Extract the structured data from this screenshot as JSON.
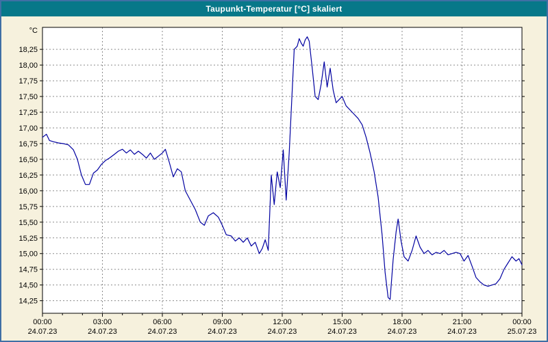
{
  "window": {
    "title": "Taupunkt-Temperatur [°C] skaliert",
    "title_bar_color": "#077889",
    "background_color": "#f6f1dd",
    "border_color": "#3f6fa5"
  },
  "chart_data": {
    "type": "line",
    "title": "Taupunkt-Temperatur [°C] skaliert",
    "xlabel": "",
    "ylabel": "°C",
    "grid": true,
    "legend": "none",
    "xlim": [
      0,
      24
    ],
    "ylim": [
      14.05,
      18.6
    ],
    "line_color": "#0000a0",
    "y_ticks": [
      {
        "value": 18.25,
        "label": "18,25"
      },
      {
        "value": 18.0,
        "label": "18,00"
      },
      {
        "value": 17.75,
        "label": "17,75"
      },
      {
        "value": 17.5,
        "label": "17,50"
      },
      {
        "value": 17.25,
        "label": "17,25"
      },
      {
        "value": 17.0,
        "label": "17,00"
      },
      {
        "value": 16.75,
        "label": "16,75"
      },
      {
        "value": 16.5,
        "label": "16,50"
      },
      {
        "value": 16.25,
        "label": "16,25"
      },
      {
        "value": 16.0,
        "label": "16,00"
      },
      {
        "value": 15.75,
        "label": "15,75"
      },
      {
        "value": 15.5,
        "label": "15,50"
      },
      {
        "value": 15.25,
        "label": "15,25"
      },
      {
        "value": 15.0,
        "label": "15,00"
      },
      {
        "value": 14.75,
        "label": "14,75"
      },
      {
        "value": 14.5,
        "label": "14,50"
      },
      {
        "value": 14.25,
        "label": "14,25"
      }
    ],
    "x_ticks": [
      {
        "hour": 0,
        "time": "00:00",
        "date": "24.07.23"
      },
      {
        "hour": 3,
        "time": "03:00",
        "date": "24.07.23"
      },
      {
        "hour": 6,
        "time": "06:00",
        "date": "24.07.23"
      },
      {
        "hour": 9,
        "time": "09:00",
        "date": "24.07.23"
      },
      {
        "hour": 12,
        "time": "12:00",
        "date": "24.07.23"
      },
      {
        "hour": 15,
        "time": "15:00",
        "date": "24.07.23"
      },
      {
        "hour": 18,
        "time": "18:00",
        "date": "24.07.23"
      },
      {
        "hour": 21,
        "time": "21:00",
        "date": "24.07.23"
      },
      {
        "hour": 24,
        "time": "00:00",
        "date": "25.07.23"
      }
    ],
    "series": [
      {
        "name": "Taupunkt-Temperatur",
        "color": "#0000a0",
        "points": [
          [
            0.0,
            16.85
          ],
          [
            0.2,
            16.9
          ],
          [
            0.35,
            16.8
          ],
          [
            0.55,
            16.78
          ],
          [
            0.8,
            16.76
          ],
          [
            1.05,
            16.75
          ],
          [
            1.3,
            16.73
          ],
          [
            1.55,
            16.65
          ],
          [
            1.75,
            16.5
          ],
          [
            1.95,
            16.25
          ],
          [
            2.15,
            16.1
          ],
          [
            2.35,
            16.1
          ],
          [
            2.55,
            16.28
          ],
          [
            2.75,
            16.33
          ],
          [
            2.95,
            16.42
          ],
          [
            3.15,
            16.48
          ],
          [
            3.35,
            16.52
          ],
          [
            3.6,
            16.58
          ],
          [
            3.8,
            16.63
          ],
          [
            4.0,
            16.66
          ],
          [
            4.2,
            16.6
          ],
          [
            4.4,
            16.65
          ],
          [
            4.6,
            16.58
          ],
          [
            4.8,
            16.63
          ],
          [
            5.0,
            16.58
          ],
          [
            5.2,
            16.52
          ],
          [
            5.4,
            16.6
          ],
          [
            5.6,
            16.5
          ],
          [
            5.8,
            16.55
          ],
          [
            6.0,
            16.6
          ],
          [
            6.15,
            16.66
          ],
          [
            6.35,
            16.45
          ],
          [
            6.55,
            16.22
          ],
          [
            6.75,
            16.35
          ],
          [
            6.95,
            16.3
          ],
          [
            7.15,
            16.0
          ],
          [
            7.4,
            15.85
          ],
          [
            7.65,
            15.7
          ],
          [
            7.9,
            15.5
          ],
          [
            8.1,
            15.45
          ],
          [
            8.3,
            15.6
          ],
          [
            8.55,
            15.65
          ],
          [
            8.8,
            15.58
          ],
          [
            9.0,
            15.45
          ],
          [
            9.2,
            15.3
          ],
          [
            9.45,
            15.28
          ],
          [
            9.65,
            15.2
          ],
          [
            9.85,
            15.25
          ],
          [
            10.05,
            15.18
          ],
          [
            10.25,
            15.25
          ],
          [
            10.45,
            15.12
          ],
          [
            10.65,
            15.18
          ],
          [
            10.85,
            15.0
          ],
          [
            11.0,
            15.08
          ],
          [
            11.15,
            15.22
          ],
          [
            11.3,
            15.05
          ],
          [
            11.45,
            16.25
          ],
          [
            11.6,
            15.78
          ],
          [
            11.75,
            16.3
          ],
          [
            11.9,
            16.05
          ],
          [
            12.05,
            16.65
          ],
          [
            12.2,
            15.85
          ],
          [
            12.35,
            16.6
          ],
          [
            12.5,
            17.6
          ],
          [
            12.6,
            18.25
          ],
          [
            12.75,
            18.3
          ],
          [
            12.85,
            18.42
          ],
          [
            12.95,
            18.35
          ],
          [
            13.05,
            18.3
          ],
          [
            13.15,
            18.4
          ],
          [
            13.25,
            18.45
          ],
          [
            13.35,
            18.38
          ],
          [
            13.5,
            17.95
          ],
          [
            13.65,
            17.5
          ],
          [
            13.8,
            17.45
          ],
          [
            13.95,
            17.7
          ],
          [
            14.1,
            18.05
          ],
          [
            14.25,
            17.65
          ],
          [
            14.4,
            17.95
          ],
          [
            14.55,
            17.6
          ],
          [
            14.7,
            17.4
          ],
          [
            14.85,
            17.45
          ],
          [
            15.0,
            17.5
          ],
          [
            15.2,
            17.35
          ],
          [
            15.5,
            17.25
          ],
          [
            15.8,
            17.15
          ],
          [
            16.0,
            17.05
          ],
          [
            16.2,
            16.85
          ],
          [
            16.4,
            16.6
          ],
          [
            16.6,
            16.3
          ],
          [
            16.8,
            15.9
          ],
          [
            17.0,
            15.3
          ],
          [
            17.15,
            14.7
          ],
          [
            17.3,
            14.3
          ],
          [
            17.4,
            14.27
          ],
          [
            17.55,
            14.9
          ],
          [
            17.7,
            15.35
          ],
          [
            17.8,
            15.55
          ],
          [
            17.95,
            15.2
          ],
          [
            18.1,
            14.95
          ],
          [
            18.3,
            14.88
          ],
          [
            18.5,
            15.05
          ],
          [
            18.7,
            15.28
          ],
          [
            18.9,
            15.1
          ],
          [
            19.1,
            15.0
          ],
          [
            19.3,
            15.05
          ],
          [
            19.5,
            14.98
          ],
          [
            19.7,
            15.02
          ],
          [
            19.9,
            15.0
          ],
          [
            20.1,
            15.05
          ],
          [
            20.3,
            14.98
          ],
          [
            20.5,
            15.0
          ],
          [
            20.7,
            15.02
          ],
          [
            20.9,
            15.0
          ],
          [
            21.1,
            14.88
          ],
          [
            21.3,
            14.97
          ],
          [
            21.5,
            14.8
          ],
          [
            21.7,
            14.62
          ],
          [
            21.9,
            14.55
          ],
          [
            22.1,
            14.5
          ],
          [
            22.3,
            14.48
          ],
          [
            22.5,
            14.5
          ],
          [
            22.7,
            14.52
          ],
          [
            22.9,
            14.6
          ],
          [
            23.1,
            14.75
          ],
          [
            23.3,
            14.85
          ],
          [
            23.5,
            14.95
          ],
          [
            23.7,
            14.88
          ],
          [
            23.85,
            14.92
          ],
          [
            24.0,
            14.82
          ]
        ]
      }
    ]
  }
}
